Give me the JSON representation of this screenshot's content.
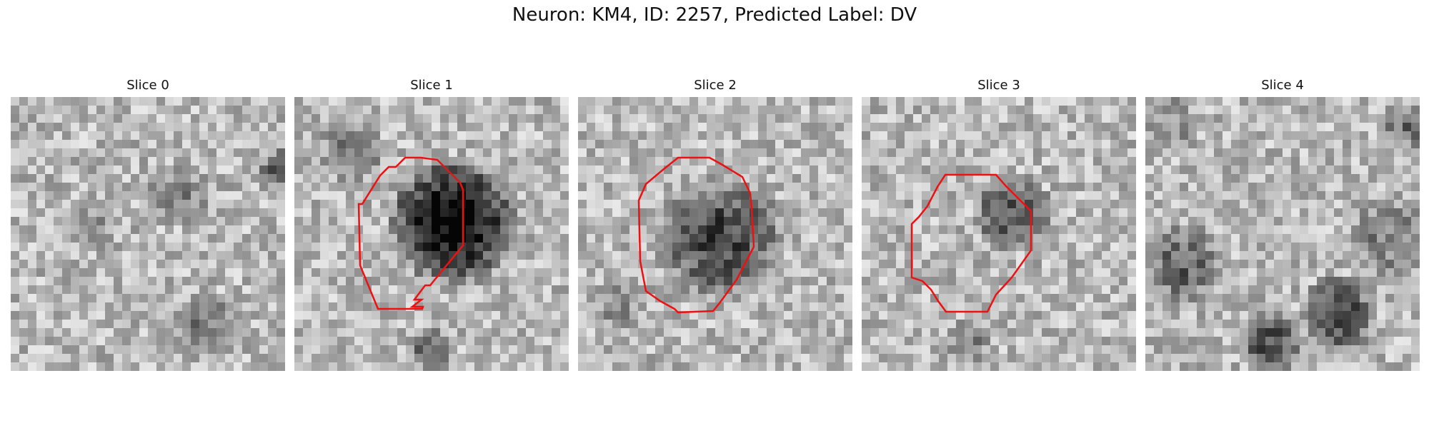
{
  "figure": {
    "title": "Neuron: KM4, ID: 2257, Predicted Label: DV"
  },
  "slices": [
    {
      "title": "Slice 0",
      "roi": false
    },
    {
      "title": "Slice 1",
      "roi": true
    },
    {
      "title": "Slice 2",
      "roi": true
    },
    {
      "title": "Slice 3",
      "roi": true
    },
    {
      "title": "Slice 4",
      "roi": false
    }
  ],
  "colors": {
    "roi_outline": "#ee1111",
    "colormap": "gray"
  }
}
